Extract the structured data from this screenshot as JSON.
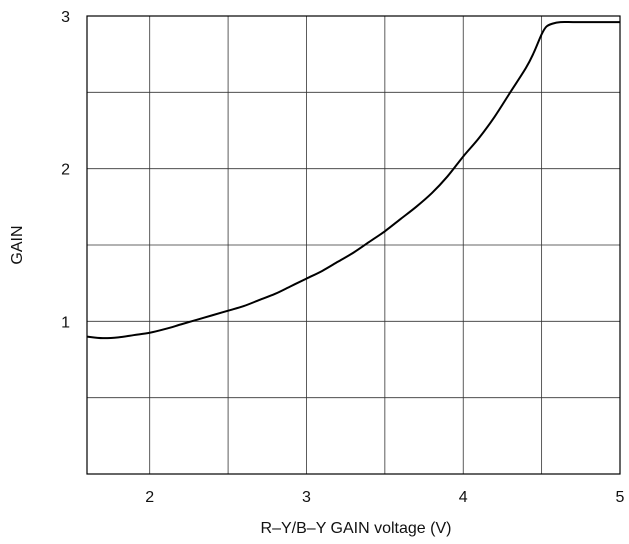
{
  "chart_data": {
    "type": "line",
    "title": "",
    "xlabel": "R–Y/B–Y GAIN voltage   (V)",
    "ylabel": "GAIN",
    "xlim": [
      1.6,
      5.0
    ],
    "ylim": [
      0,
      3
    ],
    "x_ticks": [
      2,
      3,
      4,
      5
    ],
    "x_tick_labels": [
      "2",
      "3",
      "4",
      "5"
    ],
    "y_ticks": [
      1,
      2,
      3
    ],
    "y_tick_labels": [
      "1",
      "2",
      "3"
    ],
    "x_grid": [
      2,
      2.5,
      3,
      3.5,
      4,
      4.5
    ],
    "y_grid": [
      0.5,
      1,
      1.5,
      2,
      2.5
    ],
    "grid": true,
    "series": [
      {
        "color": "#000000",
        "x": [
          1.6,
          1.7,
          1.8,
          1.9,
          2.0,
          2.1,
          2.2,
          2.3,
          2.4,
          2.5,
          2.6,
          2.7,
          2.8,
          2.9,
          3.0,
          3.1,
          3.2,
          3.3,
          3.4,
          3.5,
          3.6,
          3.7,
          3.8,
          3.9,
          4.0,
          4.1,
          4.2,
          4.3,
          4.4,
          4.45,
          4.5,
          4.53,
          4.57,
          4.62,
          4.7,
          4.8,
          5.0
        ],
        "y": [
          0.9,
          0.89,
          0.895,
          0.91,
          0.925,
          0.95,
          0.98,
          1.01,
          1.04,
          1.07,
          1.1,
          1.14,
          1.18,
          1.23,
          1.28,
          1.33,
          1.39,
          1.45,
          1.52,
          1.59,
          1.67,
          1.75,
          1.84,
          1.95,
          2.08,
          2.2,
          2.34,
          2.5,
          2.66,
          2.76,
          2.88,
          2.93,
          2.95,
          2.96,
          2.96,
          2.96,
          2.96
        ]
      }
    ]
  }
}
